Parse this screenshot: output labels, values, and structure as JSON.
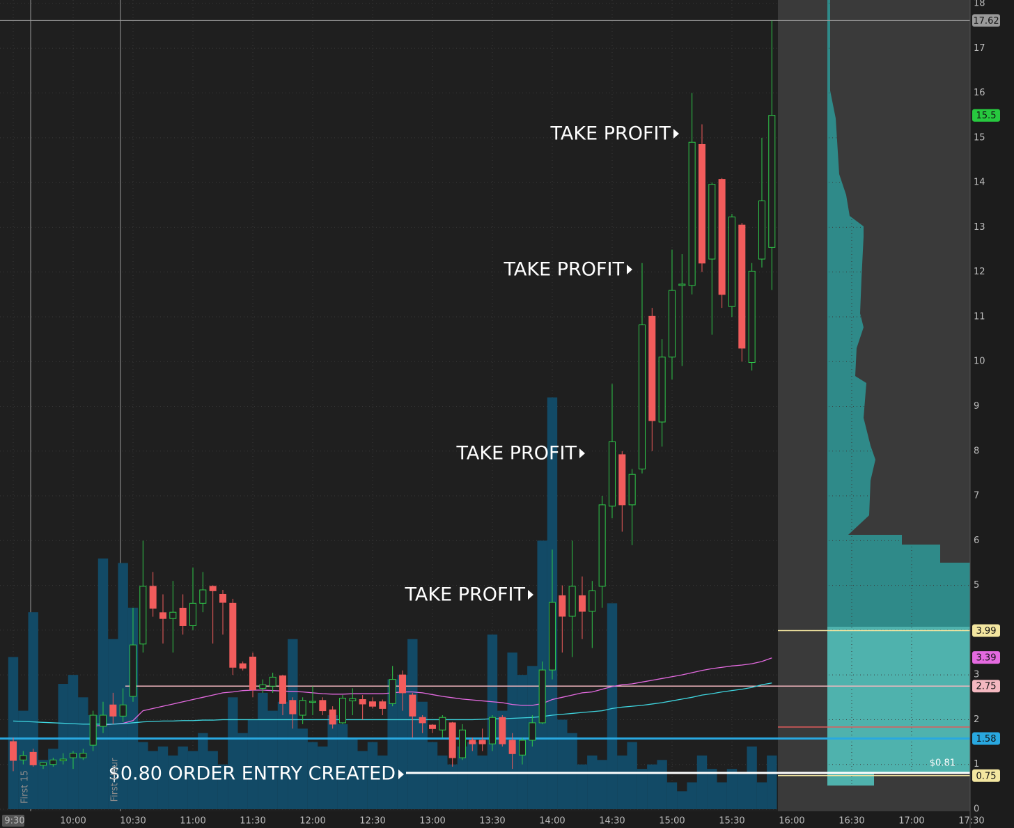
{
  "chart_data": {
    "type": "candlestick",
    "categories": [
      "9:30",
      null,
      null,
      null,
      null,
      null,
      "10:00",
      null,
      null,
      null,
      null,
      null,
      "10:30",
      null,
      null,
      null,
      null,
      null,
      "11:00",
      null,
      null,
      null,
      null,
      null,
      "11:30",
      null,
      null,
      null,
      null,
      null,
      "12:00",
      null,
      null,
      null,
      null,
      null,
      "12:30",
      null,
      null,
      null,
      null,
      null,
      "13:00",
      null,
      null,
      null,
      null,
      null,
      "13:30",
      null,
      null,
      null,
      null,
      null,
      "14:00",
      null,
      null,
      null,
      null,
      null,
      "14:30",
      null,
      null,
      null,
      null,
      null,
      "15:00",
      null,
      null,
      null,
      null,
      null,
      "15:30",
      null,
      null,
      null,
      null,
      null,
      "16:00",
      null,
      null,
      null,
      null,
      null,
      "16:30",
      null,
      null,
      null,
      null,
      null,
      "17:00",
      null,
      null,
      null,
      null,
      null,
      "17:30"
    ],
    "open": [
      1.51,
      1.1,
      1.27,
      0.98,
      1.0,
      1.08,
      1.15,
      1.15,
      1.43,
      1.85,
      2.33,
      2.08,
      2.52,
      3.69,
      4.98,
      4.39,
      4.26,
      4.49,
      4.1,
      4.6,
      4.98,
      4.8,
      4.6,
      3.25,
      3.4,
      2.7,
      2.75,
      2.98,
      2.43,
      2.1,
      2.4,
      2.43,
      2.22,
      1.93,
      2.42,
      2.45,
      2.4,
      2.4,
      2.36,
      3.0,
      2.55,
      2.05,
      1.88,
      1.77,
      1.93,
      1.15,
      1.54,
      1.54,
      1.46,
      2.05,
      1.54,
      1.21,
      1.54,
      1.93,
      3.11,
      4.77,
      4.31,
      4.77,
      4.42,
      4.98,
      6.77,
      7.92,
      6.8,
      7.6,
      11.01,
      8.65,
      10.1,
      11.7,
      11.7,
      14.85,
      12.29,
      14.07,
      11.23,
      13.05,
      9.98,
      12.29,
      12.55,
      null,
      null,
      null,
      null,
      null,
      null,
      null,
      null,
      null,
      null,
      null,
      null,
      null,
      null,
      null,
      null,
      null,
      null,
      null,
      null
    ],
    "high": [
      1.6,
      1.3,
      1.35,
      1.05,
      1.15,
      1.25,
      1.3,
      1.35,
      2.2,
      2.4,
      2.6,
      2.7,
      4.5,
      6.0,
      5.3,
      4.8,
      5.1,
      4.8,
      5.4,
      5.3,
      5.0,
      4.9,
      4.7,
      3.3,
      3.5,
      2.9,
      3.05,
      3.0,
      2.5,
      2.5,
      2.75,
      2.5,
      2.3,
      2.55,
      2.7,
      2.55,
      2.5,
      2.45,
      3.2,
      3.1,
      2.6,
      2.1,
      1.9,
      2.1,
      1.95,
      1.9,
      1.6,
      1.8,
      2.1,
      2.1,
      1.7,
      1.6,
      2.1,
      3.3,
      5.8,
      5.0,
      6.0,
      5.2,
      5.1,
      7.0,
      9.5,
      8.0,
      7.6,
      12.2,
      11.2,
      10.5,
      12.5,
      12.4,
      16.0,
      15.3,
      14.0,
      14.1,
      13.3,
      13.1,
      12.2,
      15.0,
      17.62,
      null,
      null,
      null,
      null,
      null,
      null,
      null,
      null,
      null,
      null,
      null,
      null,
      null,
      null,
      null,
      null,
      null,
      null,
      null,
      null
    ],
    "low": [
      0.85,
      1.0,
      0.95,
      0.9,
      0.95,
      1.0,
      0.9,
      1.1,
      1.3,
      1.7,
      1.9,
      1.95,
      2.4,
      3.5,
      4.3,
      3.7,
      3.5,
      3.9,
      4.0,
      4.4,
      3.7,
      3.9,
      3.0,
      3.1,
      2.5,
      2.6,
      2.6,
      2.1,
      1.8,
      1.9,
      2.1,
      2.1,
      1.8,
      1.9,
      2.1,
      2.0,
      2.25,
      2.1,
      2.3,
      2.2,
      1.6,
      1.7,
      1.7,
      1.6,
      0.95,
      1.1,
      1.3,
      1.3,
      1.3,
      1.4,
      0.9,
      1.0,
      1.4,
      1.9,
      2.9,
      3.5,
      3.4,
      3.8,
      3.6,
      4.5,
      6.5,
      6.2,
      5.9,
      7.5,
      8.0,
      8.1,
      9.6,
      9.9,
      11.5,
      12.0,
      10.6,
      11.2,
      11.0,
      10.0,
      9.8,
      12.1,
      11.6,
      null,
      null,
      null,
      null,
      null,
      null,
      null,
      null,
      null,
      null,
      null,
      null,
      null,
      null,
      null,
      null,
      null,
      null,
      null,
      null
    ],
    "close": [
      1.09,
      1.2,
      0.99,
      1.04,
      1.1,
      1.12,
      1.25,
      1.25,
      2.1,
      2.1,
      2.08,
      2.33,
      3.67,
      4.98,
      4.49,
      4.26,
      4.4,
      4.1,
      4.6,
      4.9,
      4.88,
      4.62,
      3.17,
      3.15,
      2.67,
      2.78,
      2.95,
      2.36,
      2.13,
      2.43,
      2.41,
      2.2,
      1.9,
      2.48,
      2.47,
      2.35,
      2.3,
      2.25,
      2.9,
      2.6,
      2.08,
      1.93,
      1.8,
      2.05,
      1.15,
      1.77,
      1.46,
      1.46,
      2.05,
      1.46,
      1.24,
      1.54,
      1.93,
      3.11,
      4.62,
      4.31,
      4.98,
      4.42,
      4.88,
      6.8,
      8.21,
      6.8,
      7.48,
      10.82,
      8.68,
      10.1,
      11.59,
      11.73,
      14.9,
      12.2,
      13.96,
      11.5,
      13.23,
      10.3,
      12.02,
      13.59,
      15.5,
      null,
      null,
      null,
      null,
      null,
      null,
      null,
      null,
      null,
      null,
      null,
      null,
      null,
      null,
      null,
      null,
      null,
      null,
      null,
      null
    ],
    "volume": [
      3.4,
      2.2,
      4.4,
      1.1,
      1.35,
      2.8,
      3.0,
      2.5,
      2.1,
      5.6,
      3.8,
      5.5,
      4.5,
      1.5,
      1.3,
      1.4,
      1.2,
      1.4,
      1.3,
      1.7,
      1.3,
      1.0,
      2.5,
      1.7,
      2.0,
      2.6,
      2.2,
      2.4,
      3.8,
      1.8,
      1.5,
      1.4,
      2.1,
      1.9,
      1.6,
      1.3,
      1.5,
      1.2,
      2.9,
      3.0,
      3.8,
      2.4,
      1.5,
      1.2,
      1.0,
      1.4,
      1.5,
      1.2,
      3.9,
      2.2,
      3.5,
      3.0,
      3.2,
      6.0,
      9.2,
      2.0,
      1.7,
      1.0,
      1.2,
      1.1,
      4.6,
      1.2,
      1.5,
      0.9,
      1.0,
      1.1,
      0.6,
      0.4,
      0.6,
      1.2,
      0.9,
      0.6,
      0.9,
      0.8,
      1.4,
      0.6,
      1.2,
      null,
      null,
      null,
      null,
      null,
      null,
      null,
      null,
      null,
      null,
      null,
      null,
      null,
      null,
      null,
      null,
      null,
      null,
      null,
      null
    ],
    "up_color": "#2fc94a",
    "down_color": "#f25c5c",
    "volume_color": "#124a66",
    "moving_averages": [
      {
        "color": "#e46ae0",
        "values": [
          null,
          null,
          null,
          null,
          null,
          null,
          null,
          null,
          1.85,
          1.88,
          1.9,
          1.92,
          1.98,
          2.2,
          2.25,
          2.3,
          2.35,
          2.4,
          2.45,
          2.5,
          2.55,
          2.6,
          2.62,
          2.65,
          2.66,
          2.66,
          2.65,
          2.64,
          2.63,
          2.62,
          2.6,
          2.58,
          2.57,
          2.57,
          2.58,
          2.58,
          2.58,
          2.58,
          2.6,
          2.62,
          2.62,
          2.6,
          2.56,
          2.52,
          2.49,
          2.46,
          2.44,
          2.42,
          2.4,
          2.38,
          2.34,
          2.32,
          2.32,
          2.36,
          2.45,
          2.5,
          2.55,
          2.6,
          2.62,
          2.68,
          2.74,
          2.78,
          2.8,
          2.84,
          2.88,
          2.92,
          2.96,
          3.0,
          3.05,
          3.1,
          3.14,
          3.17,
          3.2,
          3.22,
          3.25,
          3.3,
          3.38,
          null,
          null,
          null,
          null,
          null,
          null,
          null,
          null,
          null,
          null,
          null,
          null,
          null,
          null,
          null,
          null,
          null,
          null,
          null,
          null
        ]
      },
      {
        "color": "#3fd6e0",
        "values": [
          1.97,
          1.96,
          1.95,
          1.94,
          1.93,
          1.92,
          1.91,
          1.9,
          1.9,
          1.9,
          1.9,
          1.91,
          1.93,
          1.95,
          1.96,
          1.97,
          1.97,
          1.98,
          1.98,
          1.99,
          1.99,
          2.0,
          2.0,
          2.0,
          2.0,
          2.0,
          2.0,
          2.0,
          2.0,
          2.0,
          2.0,
          2.0,
          2.0,
          2.0,
          2.0,
          2.0,
          2.0,
          2.0,
          2.0,
          2.0,
          2.0,
          2.0,
          2.0,
          2.0,
          2.0,
          2.0,
          2.0,
          2.01,
          2.02,
          2.02,
          2.03,
          2.04,
          2.05,
          2.07,
          2.1,
          2.12,
          2.14,
          2.16,
          2.18,
          2.2,
          2.25,
          2.28,
          2.3,
          2.32,
          2.35,
          2.38,
          2.42,
          2.46,
          2.5,
          2.55,
          2.58,
          2.62,
          2.65,
          2.68,
          2.72,
          2.78,
          2.82,
          null,
          null,
          null,
          null,
          null,
          null,
          null,
          null,
          null,
          null,
          null,
          null,
          null,
          null,
          null,
          null,
          null,
          null,
          null,
          null
        ]
      }
    ],
    "ylim": [
      0,
      18
    ],
    "yticks": [
      0,
      1,
      2,
      3,
      4,
      5,
      6,
      7,
      8,
      9,
      10,
      11,
      12,
      13,
      14,
      15,
      16,
      17,
      18
    ],
    "grid": true,
    "price_levels": [
      {
        "value": 17.62,
        "color": "#9a9a9a"
      },
      {
        "value": 15.5,
        "color": "#27c93f"
      },
      {
        "value": 3.99,
        "color": "#f3e6a0"
      },
      {
        "value": 3.39,
        "color": "#e46ae0"
      },
      {
        "value": 2.75,
        "color": "#f4b8c0"
      },
      {
        "value": 1.58,
        "color": "#29a8e0"
      },
      {
        "value": 0.75,
        "color": "#f3e6a0"
      }
    ],
    "order_line": {
      "value": 0.81,
      "label": "$0.81",
      "color": "#ffffff"
    },
    "annotations": [
      "TAKE PROFIT",
      "TAKE PROFIT",
      "TAKE PROFIT",
      "TAKE PROFIT",
      "$0.80 ORDER ENTRY CREATED"
    ],
    "session_markers": [
      "First 15",
      "First Hour"
    ]
  }
}
